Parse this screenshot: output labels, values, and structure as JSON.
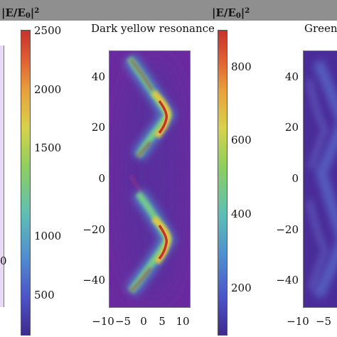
{
  "colorbar_title_left": "|E/E₀|²",
  "colorbar_title_mid": "|E/E₀|²",
  "colorbar_left": {
    "ticks": [
      "2500",
      "2000",
      "1500",
      "1000",
      "500"
    ]
  },
  "colorbar_mid": {
    "ticks": [
      "800",
      "600",
      "400",
      "200"
    ]
  },
  "panel_mid": {
    "title": "Dark yellow resonance",
    "yticks": [
      "40",
      "20",
      "0",
      "−20",
      "−40"
    ],
    "xticks": [
      "−10",
      "−5",
      "0",
      "5",
      "10"
    ]
  },
  "panel_right": {
    "title": "Green",
    "yticks": [
      "40",
      "20",
      "0",
      "−20",
      "−40"
    ],
    "xticks": [
      "−10",
      "−5"
    ]
  },
  "left_edge_ticks": [
    "0"
  ],
  "colors": {
    "background_field": "#6a2b9f",
    "hot_spot": "#c7312b",
    "top_bar": "#8f8f8f"
  }
}
